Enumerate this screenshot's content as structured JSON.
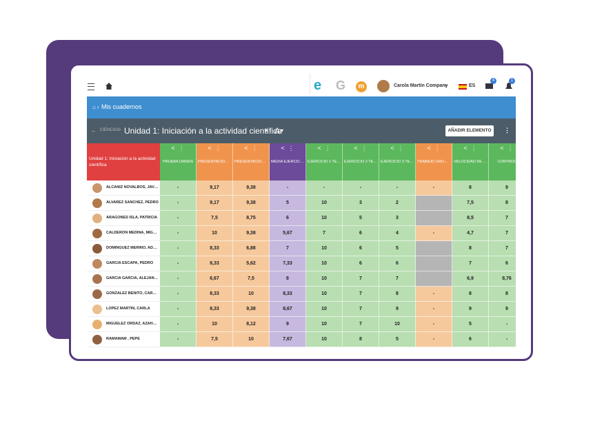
{
  "topbar": {
    "apps": [
      "e",
      "G",
      "m"
    ],
    "user": "Carola Martín Company",
    "language": "ES",
    "mail_badge": "4",
    "bell_badge": "1"
  },
  "breadcrumb": {
    "title": "Mis cuadernos"
  },
  "subheader": {
    "subject": "CIENCIAS",
    "unit": "Unidad 1: Iniciación a la actividad científica",
    "group": "A",
    "button": "AÑADIR ELEMENTO"
  },
  "table": {
    "corner": "Unidad 1: Iniciación a la actividad científica",
    "columns": [
      {
        "label": "PRUEBA ORDEN",
        "color": "green"
      },
      {
        "label": "PRESENTACIÓN ...",
        "color": "orange"
      },
      {
        "label": "PRESENTACIÓN ...",
        "color": "orange"
      },
      {
        "label": "MEDIA EJERCICI...",
        "color": "purple"
      },
      {
        "label": "EJERCICIO 1 TEM...",
        "color": "green"
      },
      {
        "label": "EJERCICIO 2 TEM...",
        "color": "green"
      },
      {
        "label": "EJERCICIO 3 TEM...",
        "color": "green"
      },
      {
        "label": "TRABAJO GRUPO...",
        "color": "orange"
      },
      {
        "label": "VELOCIDAD DE C...",
        "color": "green"
      },
      {
        "label": "CONTROL",
        "color": "green"
      }
    ],
    "rows": [
      {
        "name": "ALCAÑIZ NOVALBOS, JAVIER",
        "cells": [
          "-",
          "9,17",
          "9,38",
          "-",
          "-",
          "-",
          "-",
          "-",
          "8",
          "9"
        ]
      },
      {
        "name": "ÁLVAREZ SÁNCHEZ, PEDRO",
        "cells": [
          "-",
          "9,17",
          "9,38",
          "5",
          "10",
          "3",
          "2",
          null,
          "7,5",
          "8"
        ]
      },
      {
        "name": "ARAGONÉS ISLA, PATRICIA",
        "cells": [
          "-",
          "7,5",
          "8,75",
          "6",
          "10",
          "5",
          "3",
          null,
          "8,5",
          "7"
        ]
      },
      {
        "name": "CALDERÓN MEDINA, MIGUEL",
        "cells": [
          "-",
          "10",
          "9,38",
          "5,67",
          "7",
          "6",
          "4",
          "-",
          "4,7",
          "7"
        ]
      },
      {
        "name": "DOMÍNGUEZ MERINO, ADOLFO",
        "cells": [
          "-",
          "8,33",
          "6,88",
          "7",
          "10",
          "6",
          "5",
          null,
          "8",
          "7"
        ]
      },
      {
        "name": "GARCÍA ESCAPA, PEDRO",
        "cells": [
          "-",
          "8,33",
          "5,62",
          "7,33",
          "10",
          "6",
          "6",
          null,
          "7",
          "6"
        ]
      },
      {
        "name": "GARCÍA GARCÍA, ALEJANDRO",
        "cells": [
          "-",
          "6,67",
          "7,5",
          "8",
          "10",
          "7",
          "7",
          null,
          "6,9",
          "8,76"
        ]
      },
      {
        "name": "GONZÁLEZ BENITO, CARLOS",
        "cells": [
          "-",
          "8,33",
          "10",
          "8,33",
          "10",
          "7",
          "8",
          "-",
          "8",
          "8"
        ]
      },
      {
        "name": "LÓPEZ MARTÍN, CARLA",
        "cells": [
          "-",
          "8,33",
          "9,38",
          "8,67",
          "10",
          "7",
          "9",
          "-",
          "9",
          "9"
        ]
      },
      {
        "name": "MIGUÉLEZ ORDAZ, AZAHARA",
        "cells": [
          "-",
          "10",
          "8,12",
          "9",
          "10",
          "7",
          "10",
          "-",
          "5",
          "-"
        ]
      },
      {
        "name": "RAMAMAM , PEPE",
        "cells": [
          "-",
          "7,5",
          "10",
          "7,67",
          "10",
          "8",
          "5",
          "-",
          "6",
          "-"
        ]
      }
    ]
  }
}
